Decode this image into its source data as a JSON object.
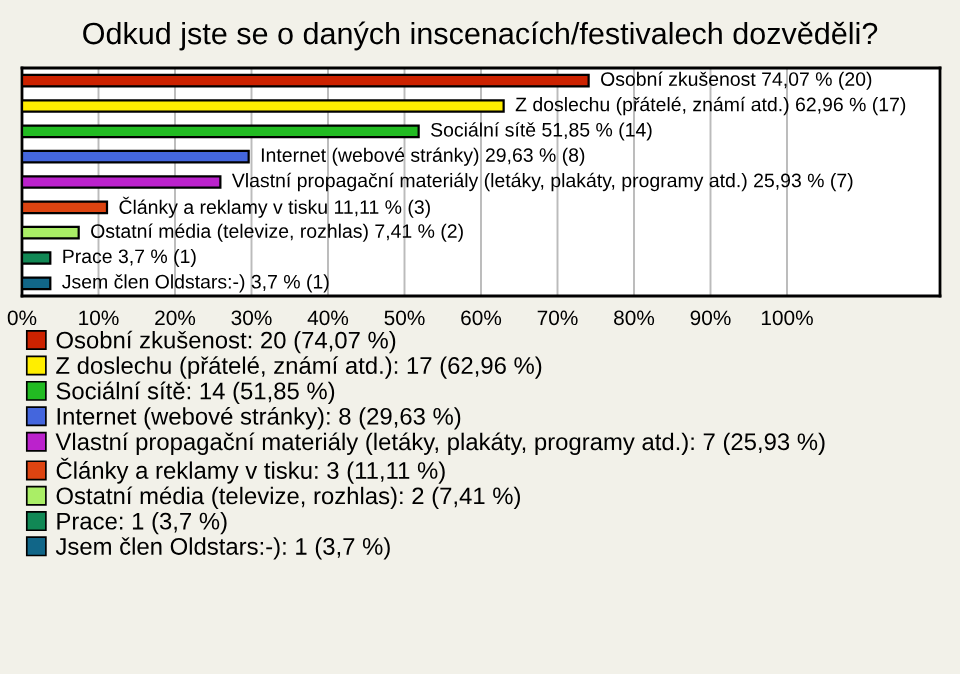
{
  "chart_data": {
    "type": "bar",
    "orientation": "horizontal",
    "title": "Odkud jste se o daných inscenacích/festivalech dozvěděli?",
    "categories": [
      null,
      null,
      null,
      null,
      null,
      null,
      null,
      null,
      null
    ],
    "series": [
      {
        "name": "Osobní zkušenost: 20 (74,07 %)",
        "color": "#cc2200",
        "values": [
          74.07,
          null,
          null,
          null,
          null,
          null,
          null,
          null,
          null
        ],
        "value_labels": [
          "Osobní zkušenost 74,07 % (20)",
          null,
          null,
          null,
          null,
          null,
          null,
          null,
          null
        ]
      },
      {
        "name": "Z doslechu (přátelé, známí atd.): 17 (62,96 %)",
        "color": "#ffee00",
        "values": [
          null,
          62.96,
          null,
          null,
          null,
          null,
          null,
          null,
          null
        ],
        "value_labels": [
          null,
          "Z doslechu (přátelé, známí atd.) 62,96 % (17)",
          null,
          null,
          null,
          null,
          null,
          null,
          null
        ]
      },
      {
        "name": "Sociální sítě: 14 (51,85 %)",
        "color": "#22bb22",
        "values": [
          null,
          null,
          51.85,
          null,
          null,
          null,
          null,
          null,
          null
        ],
        "value_labels": [
          null,
          null,
          "Sociální sítě 51,85 % (14)",
          null,
          null,
          null,
          null,
          null,
          null
        ]
      },
      {
        "name": "Internet (webové stránky): 8 (29,63 %)",
        "color": "#4466dd",
        "values": [
          null,
          null,
          null,
          29.63,
          null,
          null,
          null,
          null,
          null
        ],
        "value_labels": [
          null,
          null,
          null,
          "Internet (webové stránky) 29,63 % (8)",
          null,
          null,
          null,
          null,
          null
        ]
      },
      {
        "name": "Vlastní propagační materiály (letáky, plakáty, programy atd.): 7 (25,93 %)",
        "color": "#bb22cc",
        "values": [
          null,
          null,
          null,
          null,
          25.93,
          null,
          null,
          null,
          null
        ],
        "value_labels": [
          null,
          null,
          null,
          null,
          "Vlastní propagační materiály (letáky, plakáty, programy atd.) 25,93 % (7)",
          null,
          null,
          null,
          null
        ]
      },
      {
        "name": "Články a reklamy v tisku: 3 (11,11 %)",
        "color": "#dd4411",
        "values": [
          null,
          null,
          null,
          null,
          null,
          11.11,
          null,
          null,
          null
        ],
        "value_labels": [
          null,
          null,
          null,
          null,
          null,
          "Články a reklamy v tisku 11,11 % (3)",
          null,
          null,
          null
        ]
      },
      {
        "name": "Ostatní média (televize, rozhlas): 2 (7,41 %)",
        "color": "#aaee66",
        "values": [
          null,
          null,
          null,
          null,
          null,
          null,
          7.41,
          null,
          null
        ],
        "value_labels": [
          null,
          null,
          null,
          null,
          null,
          null,
          "Ostatní média (televize, rozhlas) 7,41 % (2)",
          null,
          null
        ]
      },
      {
        "name": "Prace: 1 (3,7 %)",
        "color": "#118855",
        "values": [
          null,
          null,
          null,
          null,
          null,
          null,
          null,
          3.7,
          null
        ],
        "value_labels": [
          null,
          null,
          null,
          null,
          null,
          null,
          null,
          "Prace 3,7 % (1)",
          null
        ]
      },
      {
        "name": "Jsem člen Oldstars:-): 1 (3,7 %)",
        "color": "#116688",
        "values": [
          null,
          null,
          null,
          null,
          null,
          null,
          null,
          null,
          3.7
        ],
        "value_labels": [
          null,
          null,
          null,
          null,
          null,
          null,
          null,
          null,
          "Jsem člen Oldstars:-) 3,7 % (1)"
        ]
      }
    ],
    "xlim": [
      0,
      120
    ],
    "xticks": [
      {
        "value": 0,
        "label": "0%"
      },
      {
        "value": 10,
        "label": "10%"
      },
      {
        "value": 20,
        "label": "20%"
      },
      {
        "value": 30,
        "label": "30%"
      },
      {
        "value": 40,
        "label": "40%"
      },
      {
        "value": 50,
        "label": "50%"
      },
      {
        "value": 60,
        "label": "60%"
      },
      {
        "value": 70,
        "label": "70%"
      },
      {
        "value": 80,
        "label": "80%"
      },
      {
        "value": 90,
        "label": "90%"
      },
      {
        "value": 100,
        "label": "100%"
      }
    ],
    "grid": "x",
    "legend": "bottom"
  }
}
